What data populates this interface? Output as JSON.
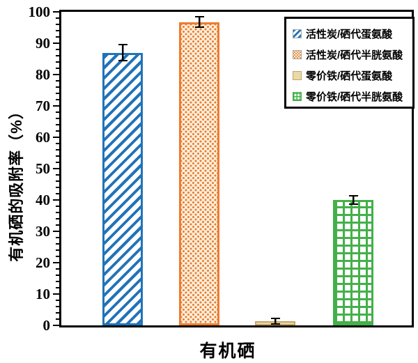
{
  "chart_data": {
    "type": "bar",
    "title": "",
    "categories": [
      "有机硒"
    ],
    "xlabel": "有机硒",
    "ylabel": "有机硒的吸附率（%）",
    "ylim": [
      0,
      100
    ],
    "ytick_major_step": 10,
    "ytick_minor_step": 2,
    "ytick_labels": [
      "0",
      "10",
      "20",
      "30",
      "40",
      "50",
      "60",
      "70",
      "80",
      "90",
      "100"
    ],
    "grid": false,
    "legend_position": "top-right-inside",
    "error_bars": true,
    "series": [
      {
        "name": "活性炭/硒代蛋氨酸",
        "values": [
          87
        ],
        "errors": [
          2.8
        ],
        "color": "#2273b8",
        "pattern": "diagonal-stripes"
      },
      {
        "name": "活性炭/硒代半胱氨酸",
        "values": [
          96.7
        ],
        "errors": [
          1.9
        ],
        "color": "#ed7d31",
        "pattern": "dots"
      },
      {
        "name": "零价铁/硒代蛋氨酸",
        "values": [
          1.3
        ],
        "errors": [
          1.1
        ],
        "color": "#c3a368",
        "pattern": "solid-tan"
      },
      {
        "name": "零价铁/硒代半胱氨酸",
        "values": [
          40
        ],
        "errors": [
          1.6
        ],
        "color": "#44b04a",
        "pattern": "grid"
      }
    ],
    "colors": {
      "axis": "#000000",
      "background": "#ffffff",
      "blue_series": "#2273b8",
      "orange_series": "#ed7d31",
      "tan_series": "#c3a368",
      "green_series": "#44b04a"
    }
  }
}
